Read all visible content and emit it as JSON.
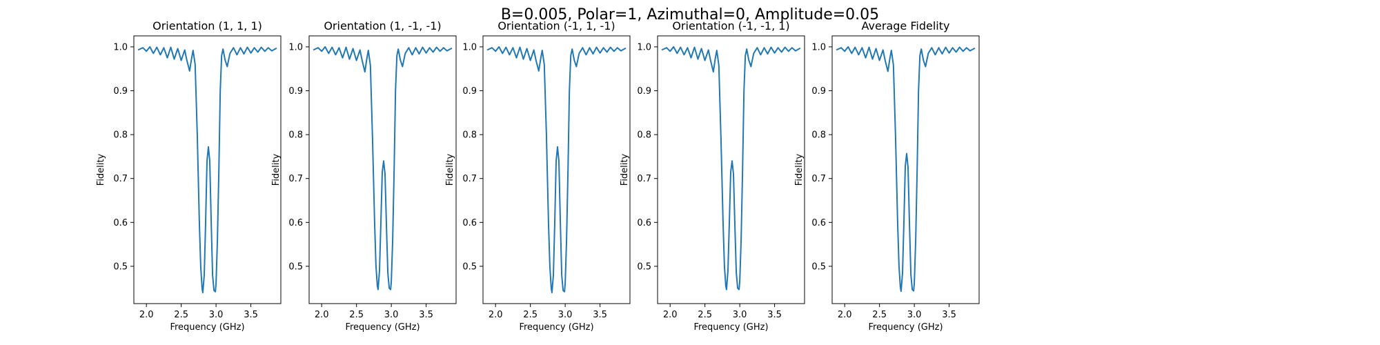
{
  "figure": {
    "suptitle": "B=0.005, Polar=1, Azimuthal=0, Amplitude=0.05"
  },
  "chart_data": [
    {
      "type": "line",
      "title": "Orientation (1, 1, 1)",
      "xlabel": "Frequency (GHz)",
      "ylabel": "Fidelity",
      "xlim": [
        1.82,
        3.93
      ],
      "ylim": [
        0.415,
        1.025
      ],
      "xticks": [
        "2.0",
        "2.5",
        "3.0",
        "3.5"
      ],
      "yticks": [
        "0.5",
        "0.6",
        "0.7",
        "0.8",
        "0.9",
        "1.0"
      ],
      "grid": false,
      "series": [
        {
          "color": "#1f77b4",
          "x": [
            1.88,
            1.95,
            2.0,
            2.05,
            2.1,
            2.15,
            2.2,
            2.25,
            2.3,
            2.35,
            2.4,
            2.45,
            2.5,
            2.55,
            2.58,
            2.62,
            2.65,
            2.67,
            2.7,
            2.73,
            2.76,
            2.78,
            2.8,
            2.81,
            2.83,
            2.85,
            2.87,
            2.89,
            2.91,
            2.93,
            2.95,
            2.97,
            2.99,
            3.0,
            3.02,
            3.04,
            3.06,
            3.08,
            3.1,
            3.13,
            3.16,
            3.2,
            3.25,
            3.3,
            3.35,
            3.4,
            3.45,
            3.5,
            3.55,
            3.6,
            3.65,
            3.7,
            3.75,
            3.8,
            3.87
          ],
          "y": [
            0.993,
            0.998,
            0.99,
            1.0,
            0.985,
            0.999,
            0.982,
            0.998,
            0.975,
            0.999,
            0.972,
            0.996,
            0.969,
            0.993,
            0.97,
            0.945,
            0.975,
            0.992,
            0.96,
            0.8,
            0.6,
            0.5,
            0.45,
            0.44,
            0.48,
            0.6,
            0.74,
            0.772,
            0.74,
            0.6,
            0.48,
            0.445,
            0.442,
            0.46,
            0.56,
            0.72,
            0.9,
            0.98,
            0.995,
            0.97,
            0.955,
            0.985,
            0.998,
            0.982,
            0.998,
            0.984,
            0.999,
            0.986,
            0.998,
            0.988,
            0.999,
            0.99,
            0.998,
            0.991,
            0.997
          ]
        }
      ]
    },
    {
      "type": "line",
      "title": "Orientation (1, -1, -1)",
      "xlabel": "Frequency (GHz)",
      "ylabel": "Fidelity",
      "xlim": [
        1.82,
        3.93
      ],
      "ylim": [
        0.415,
        1.025
      ],
      "xticks": [
        "2.0",
        "2.5",
        "3.0",
        "3.5"
      ],
      "yticks": [
        "0.5",
        "0.6",
        "0.7",
        "0.8",
        "0.9",
        "1.0"
      ],
      "grid": false,
      "series": [
        {
          "color": "#1f77b4",
          "x": [
            1.88,
            1.95,
            2.0,
            2.05,
            2.1,
            2.15,
            2.2,
            2.25,
            2.3,
            2.35,
            2.4,
            2.45,
            2.5,
            2.55,
            2.58,
            2.62,
            2.65,
            2.67,
            2.7,
            2.73,
            2.76,
            2.78,
            2.8,
            2.81,
            2.83,
            2.85,
            2.87,
            2.89,
            2.91,
            2.93,
            2.95,
            2.97,
            2.99,
            3.0,
            3.02,
            3.04,
            3.06,
            3.08,
            3.1,
            3.13,
            3.16,
            3.2,
            3.25,
            3.3,
            3.35,
            3.4,
            3.45,
            3.5,
            3.55,
            3.6,
            3.65,
            3.7,
            3.75,
            3.8,
            3.87
          ],
          "y": [
            0.993,
            0.998,
            0.99,
            1.0,
            0.985,
            0.999,
            0.982,
            0.998,
            0.975,
            0.999,
            0.972,
            0.996,
            0.969,
            0.993,
            0.97,
            0.943,
            0.975,
            0.992,
            0.958,
            0.79,
            0.6,
            0.5,
            0.455,
            0.447,
            0.49,
            0.6,
            0.715,
            0.74,
            0.71,
            0.59,
            0.485,
            0.45,
            0.447,
            0.465,
            0.56,
            0.72,
            0.9,
            0.98,
            0.995,
            0.97,
            0.955,
            0.985,
            0.998,
            0.982,
            0.998,
            0.984,
            0.999,
            0.986,
            0.998,
            0.988,
            0.999,
            0.99,
            0.998,
            0.991,
            0.997
          ]
        }
      ]
    },
    {
      "type": "line",
      "title": "Orientation (-1, 1, -1)",
      "xlabel": "Frequency (GHz)",
      "ylabel": "Fidelity",
      "xlim": [
        1.82,
        3.93
      ],
      "ylim": [
        0.415,
        1.025
      ],
      "xticks": [
        "2.0",
        "2.5",
        "3.0",
        "3.5"
      ],
      "yticks": [
        "0.5",
        "0.6",
        "0.7",
        "0.8",
        "0.9",
        "1.0"
      ],
      "grid": false,
      "series": [
        {
          "color": "#1f77b4",
          "x": [
            1.88,
            1.95,
            2.0,
            2.05,
            2.1,
            2.15,
            2.2,
            2.25,
            2.3,
            2.35,
            2.4,
            2.45,
            2.5,
            2.55,
            2.58,
            2.62,
            2.65,
            2.67,
            2.7,
            2.73,
            2.76,
            2.78,
            2.8,
            2.81,
            2.83,
            2.85,
            2.87,
            2.89,
            2.91,
            2.93,
            2.95,
            2.97,
            2.99,
            3.0,
            3.02,
            3.04,
            3.06,
            3.08,
            3.1,
            3.13,
            3.16,
            3.2,
            3.25,
            3.3,
            3.35,
            3.4,
            3.45,
            3.5,
            3.55,
            3.6,
            3.65,
            3.7,
            3.75,
            3.8,
            3.87
          ],
          "y": [
            0.993,
            0.998,
            0.99,
            1.0,
            0.985,
            0.999,
            0.982,
            0.998,
            0.975,
            0.999,
            0.972,
            0.996,
            0.969,
            0.993,
            0.97,
            0.945,
            0.975,
            0.992,
            0.96,
            0.8,
            0.6,
            0.5,
            0.45,
            0.44,
            0.48,
            0.6,
            0.74,
            0.772,
            0.74,
            0.6,
            0.48,
            0.445,
            0.442,
            0.46,
            0.56,
            0.72,
            0.9,
            0.98,
            0.995,
            0.97,
            0.955,
            0.985,
            0.998,
            0.982,
            0.998,
            0.984,
            0.999,
            0.986,
            0.998,
            0.988,
            0.999,
            0.99,
            0.998,
            0.991,
            0.997
          ]
        }
      ]
    },
    {
      "type": "line",
      "title": "Orientation (-1, -1, 1)",
      "xlabel": "Frequency (GHz)",
      "ylabel": "Fidelity",
      "xlim": [
        1.82,
        3.93
      ],
      "ylim": [
        0.415,
        1.025
      ],
      "xticks": [
        "2.0",
        "2.5",
        "3.0",
        "3.5"
      ],
      "yticks": [
        "0.5",
        "0.6",
        "0.7",
        "0.8",
        "0.9",
        "1.0"
      ],
      "grid": false,
      "series": [
        {
          "color": "#1f77b4",
          "x": [
            1.88,
            1.95,
            2.0,
            2.05,
            2.1,
            2.15,
            2.2,
            2.25,
            2.3,
            2.35,
            2.4,
            2.45,
            2.5,
            2.55,
            2.58,
            2.62,
            2.65,
            2.67,
            2.7,
            2.73,
            2.76,
            2.78,
            2.8,
            2.81,
            2.83,
            2.85,
            2.87,
            2.89,
            2.91,
            2.93,
            2.95,
            2.97,
            2.99,
            3.0,
            3.02,
            3.04,
            3.06,
            3.08,
            3.1,
            3.13,
            3.16,
            3.2,
            3.25,
            3.3,
            3.35,
            3.4,
            3.45,
            3.5,
            3.55,
            3.6,
            3.65,
            3.7,
            3.75,
            3.8,
            3.87
          ],
          "y": [
            0.993,
            0.998,
            0.99,
            1.0,
            0.985,
            0.999,
            0.982,
            0.998,
            0.975,
            0.999,
            0.972,
            0.996,
            0.969,
            0.993,
            0.97,
            0.943,
            0.975,
            0.992,
            0.958,
            0.79,
            0.6,
            0.5,
            0.455,
            0.447,
            0.49,
            0.6,
            0.715,
            0.74,
            0.71,
            0.59,
            0.485,
            0.45,
            0.447,
            0.465,
            0.56,
            0.72,
            0.9,
            0.98,
            0.995,
            0.97,
            0.955,
            0.985,
            0.998,
            0.982,
            0.998,
            0.984,
            0.999,
            0.986,
            0.998,
            0.988,
            0.999,
            0.99,
            0.998,
            0.991,
            0.997
          ]
        }
      ]
    },
    {
      "type": "line",
      "title": "Average Fidelity",
      "xlabel": "Frequency (GHz)",
      "ylabel": "Fidelity",
      "xlim": [
        1.82,
        3.93
      ],
      "ylim": [
        0.415,
        1.025
      ],
      "xticks": [
        "2.0",
        "2.5",
        "3.0",
        "3.5"
      ],
      "yticks": [
        "0.5",
        "0.6",
        "0.7",
        "0.8",
        "0.9",
        "1.0"
      ],
      "grid": false,
      "series": [
        {
          "color": "#1f77b4",
          "x": [
            1.88,
            1.95,
            2.0,
            2.05,
            2.1,
            2.15,
            2.2,
            2.25,
            2.3,
            2.35,
            2.4,
            2.45,
            2.5,
            2.55,
            2.58,
            2.62,
            2.65,
            2.67,
            2.7,
            2.73,
            2.76,
            2.78,
            2.8,
            2.81,
            2.83,
            2.85,
            2.87,
            2.89,
            2.91,
            2.93,
            2.95,
            2.97,
            2.99,
            3.0,
            3.02,
            3.04,
            3.06,
            3.08,
            3.1,
            3.13,
            3.16,
            3.2,
            3.25,
            3.3,
            3.35,
            3.4,
            3.45,
            3.5,
            3.55,
            3.6,
            3.65,
            3.7,
            3.75,
            3.8,
            3.87
          ],
          "y": [
            0.993,
            0.998,
            0.99,
            1.0,
            0.985,
            0.999,
            0.982,
            0.998,
            0.975,
            0.999,
            0.972,
            0.996,
            0.969,
            0.993,
            0.97,
            0.944,
            0.975,
            0.992,
            0.959,
            0.795,
            0.6,
            0.5,
            0.452,
            0.443,
            0.485,
            0.6,
            0.728,
            0.757,
            0.725,
            0.595,
            0.482,
            0.447,
            0.444,
            0.462,
            0.56,
            0.72,
            0.9,
            0.98,
            0.995,
            0.97,
            0.955,
            0.985,
            0.998,
            0.982,
            0.998,
            0.984,
            0.999,
            0.986,
            0.998,
            0.988,
            0.999,
            0.99,
            0.998,
            0.991,
            0.997
          ]
        }
      ]
    }
  ]
}
